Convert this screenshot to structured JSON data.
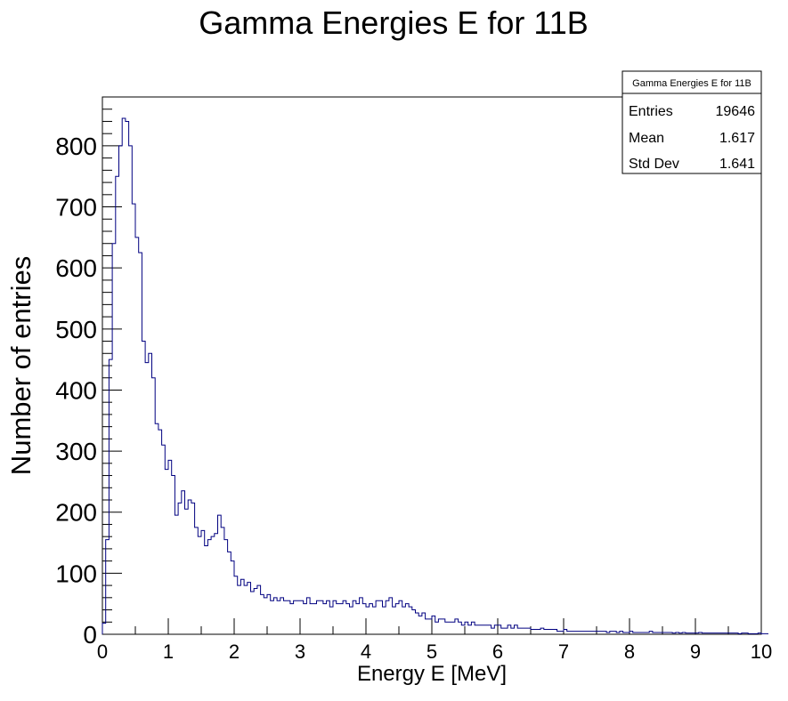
{
  "chart_data": {
    "type": "histogram",
    "title": "Gamma Energies E for 11B",
    "xlabel": "Energy E [MeV]",
    "ylabel": "Number of entries",
    "xlim": [
      0,
      10
    ],
    "ylim": [
      0,
      880
    ],
    "bin_width": 0.05,
    "x_ticks": [
      "0",
      "1",
      "2",
      "3",
      "4",
      "5",
      "6",
      "7",
      "8",
      "9",
      "10"
    ],
    "y_ticks": [
      "0",
      "100",
      "200",
      "300",
      "400",
      "500",
      "600",
      "700",
      "800"
    ],
    "line_color": "#000080",
    "stats": {
      "title": "Gamma Energies E for 11B",
      "rows": [
        {
          "label": "Entries",
          "value": "19646"
        },
        {
          "label": "Mean",
          "value": "1.617"
        },
        {
          "label": "Std Dev",
          "value": "1.641"
        }
      ]
    },
    "values": [
      18,
      155,
      450,
      640,
      750,
      800,
      845,
      840,
      800,
      705,
      650,
      625,
      480,
      445,
      460,
      420,
      345,
      335,
      310,
      270,
      285,
      260,
      195,
      215,
      235,
      205,
      220,
      215,
      175,
      160,
      170,
      145,
      155,
      160,
      165,
      195,
      175,
      155,
      135,
      120,
      95,
      80,
      90,
      80,
      85,
      70,
      75,
      80,
      65,
      60,
      65,
      55,
      60,
      55,
      60,
      55,
      55,
      50,
      55,
      55,
      55,
      50,
      60,
      50,
      50,
      55,
      55,
      50,
      55,
      45,
      55,
      50,
      50,
      55,
      50,
      45,
      55,
      50,
      60,
      50,
      45,
      50,
      45,
      55,
      55,
      45,
      55,
      60,
      45,
      50,
      55,
      45,
      50,
      45,
      40,
      35,
      30,
      35,
      25,
      25,
      30,
      20,
      25,
      25,
      20,
      20,
      20,
      25,
      20,
      15,
      20,
      15,
      20,
      15,
      15,
      15,
      15,
      15,
      10,
      15,
      15,
      10,
      10,
      15,
      10,
      15,
      10,
      10,
      10,
      10,
      8,
      8,
      8,
      10,
      8,
      8,
      8,
      8,
      5,
      5,
      8,
      5,
      5,
      5,
      5,
      5,
      5,
      5,
      5,
      5,
      5,
      5,
      5,
      3,
      5,
      5,
      3,
      5,
      3,
      3,
      5,
      3,
      3,
      3,
      3,
      3,
      5,
      3,
      3,
      3,
      3,
      3,
      3,
      2,
      3,
      2,
      3,
      2,
      2,
      2,
      2,
      3,
      2,
      2,
      2,
      2,
      2,
      2,
      2,
      2,
      2,
      2,
      2,
      1,
      2,
      2,
      1,
      1,
      1,
      2,
      1,
      1
    ]
  }
}
